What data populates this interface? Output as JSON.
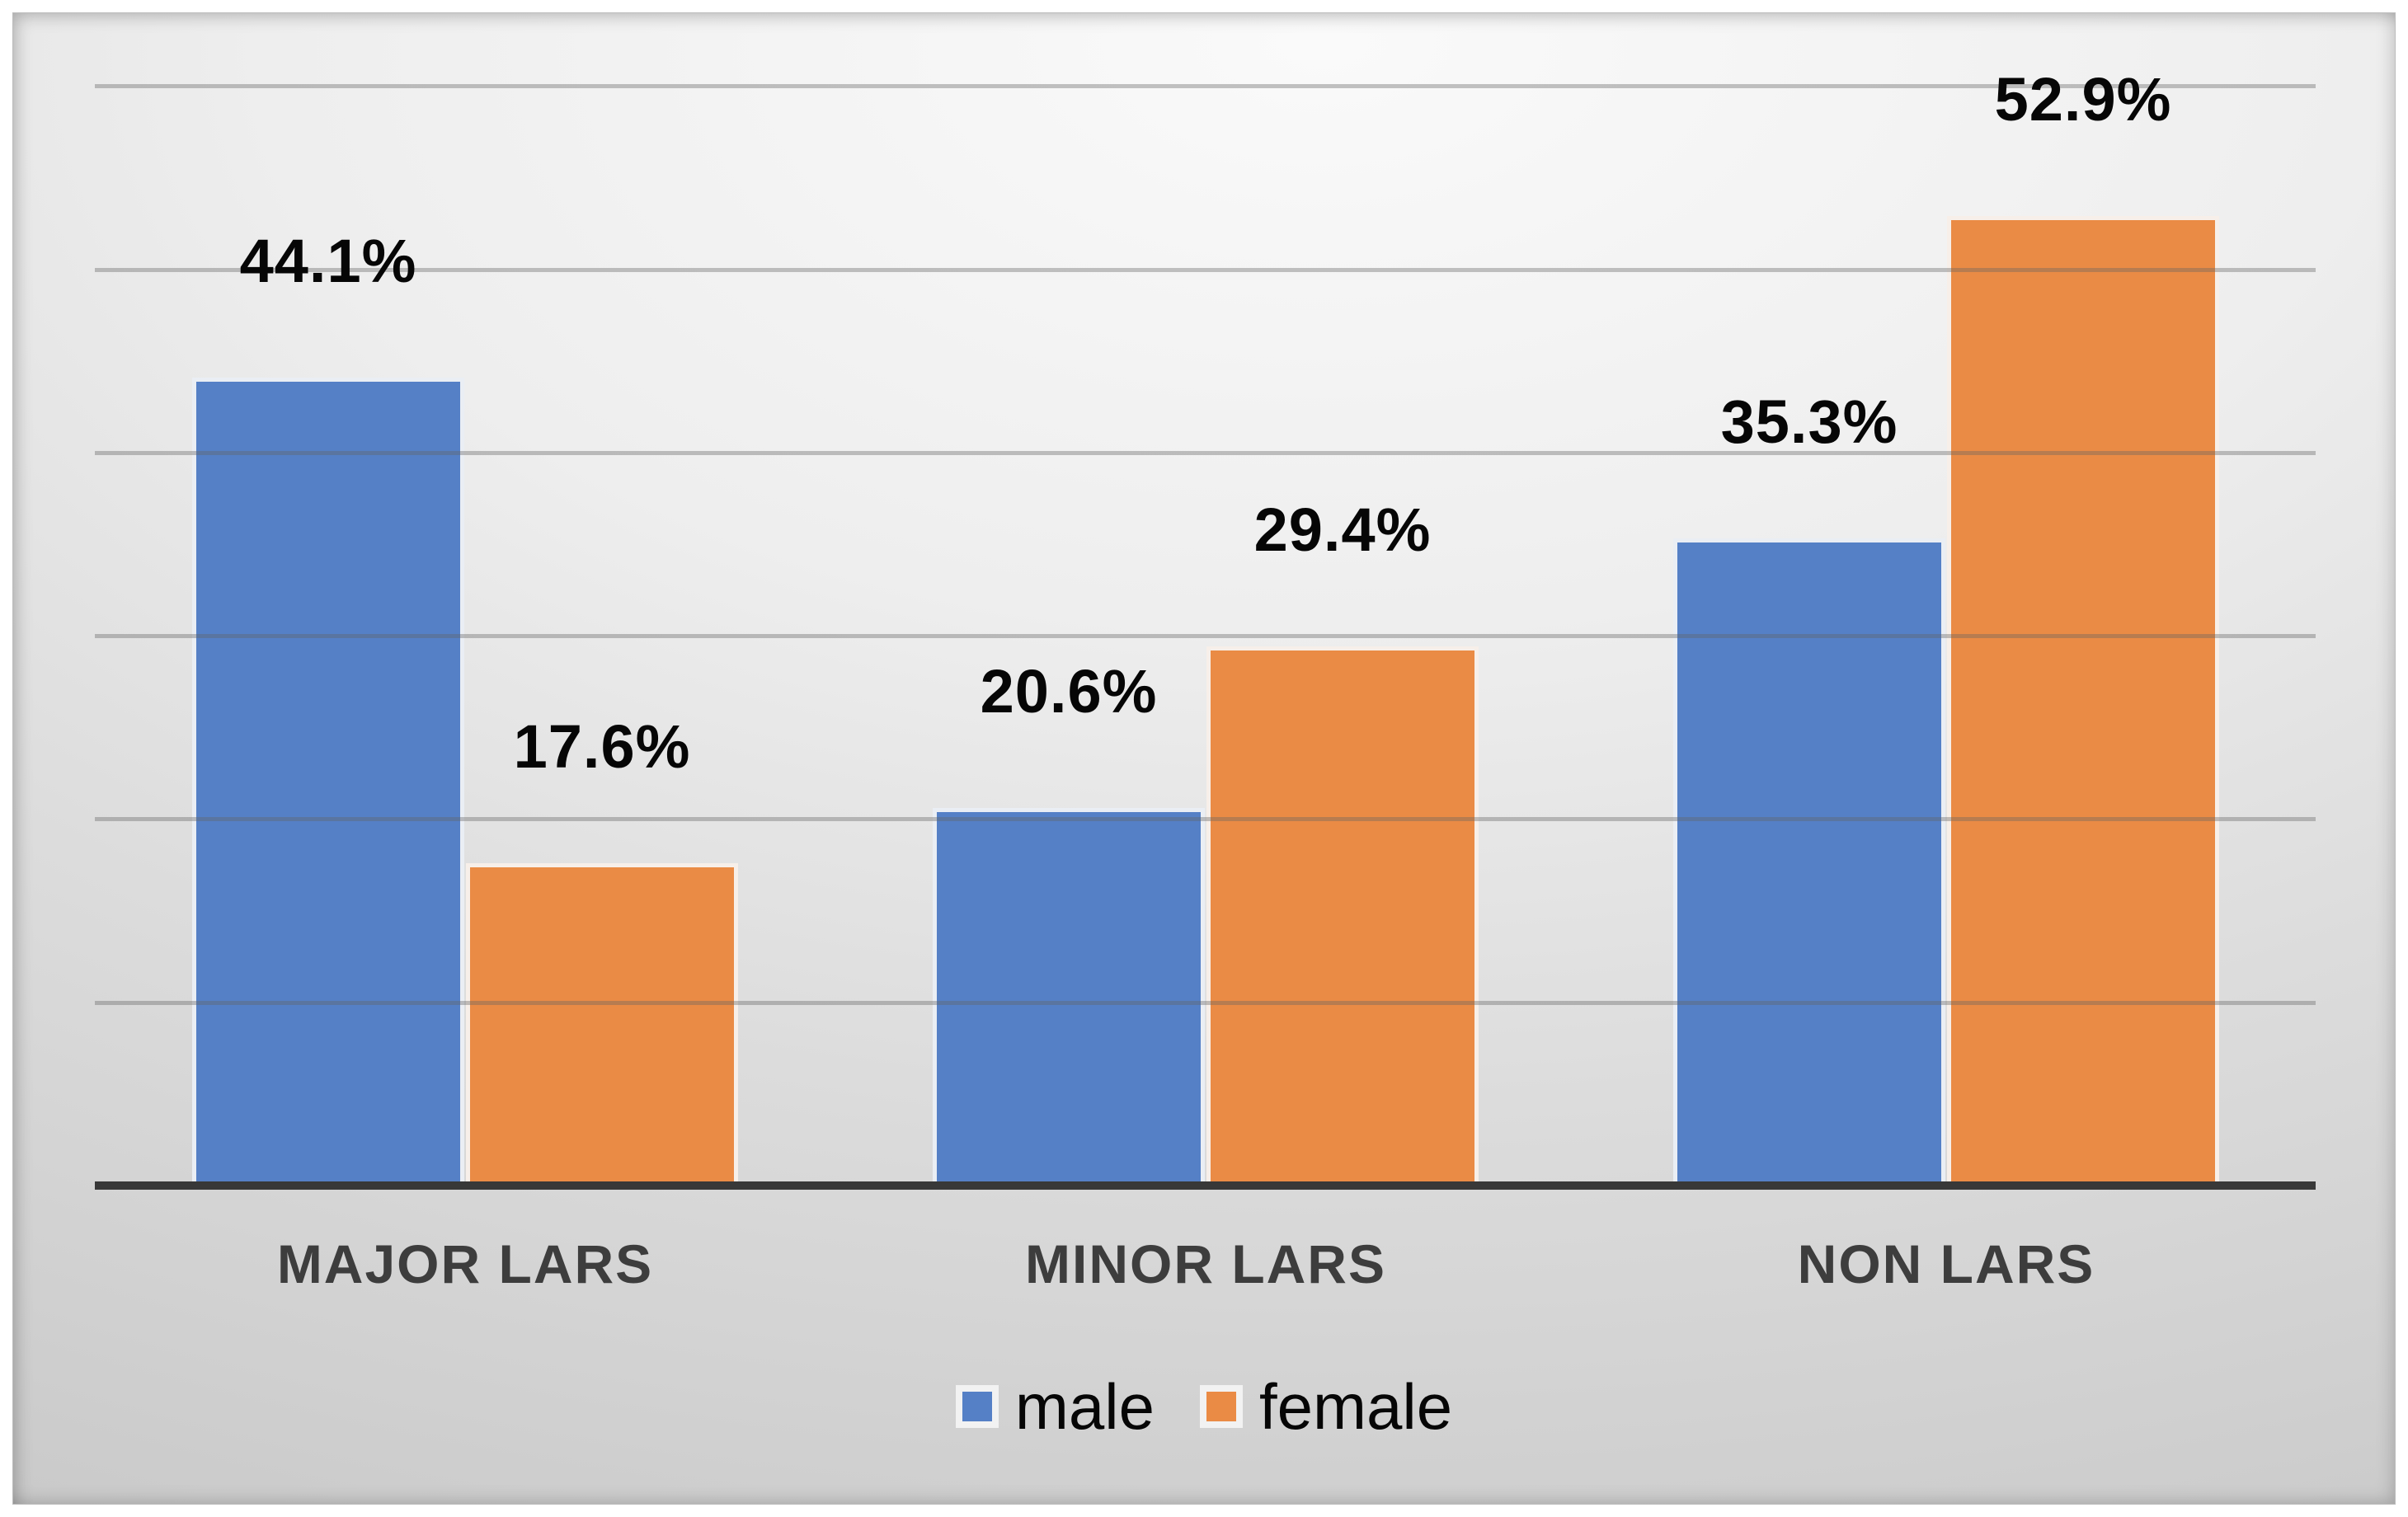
{
  "chart_data": {
    "type": "bar",
    "categories": [
      "MAJOR LARS",
      "MINOR LARS",
      "NON LARS"
    ],
    "series": [
      {
        "name": "male",
        "color": "#5580C6",
        "values": [
          44.1,
          20.6,
          35.3
        ],
        "value_labels": [
          "44.1%",
          "20.6%",
          "35.3%"
        ]
      },
      {
        "name": "female",
        "color": "#EA8B45",
        "values": [
          17.6,
          29.4,
          52.9
        ],
        "value_labels": [
          "17.6%",
          "29.4%",
          "52.9%"
        ]
      }
    ],
    "ylim": [
      0,
      60
    ],
    "gridlines_pct": [
      10,
      20,
      30,
      40,
      50,
      60
    ],
    "grid": "horizontal",
    "value_axis_labels_visible": false,
    "legend_position": "bottom"
  },
  "legend": {
    "items": [
      {
        "label": "male",
        "color": "#5580C6"
      },
      {
        "label": "female",
        "color": "#EA8B45"
      }
    ]
  },
  "styles": {
    "gridline_color": "rgba(100,100,100,0.38)",
    "axis_color": "#383838",
    "category_label_color": "#3D3D3D",
    "value_label_color": "#060606"
  }
}
